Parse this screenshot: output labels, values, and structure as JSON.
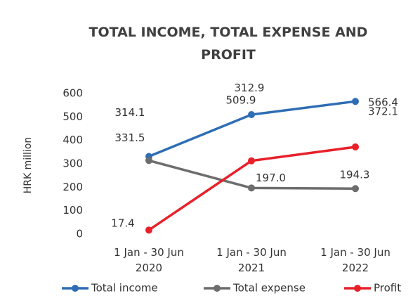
{
  "chart_data": {
    "type": "line",
    "title": "TOTAL INCOME, TOTAL EXPENSE AND PROFIT",
    "ylabel": "HRK million",
    "categories": [
      "1 Jan - 30 Jun 2020",
      "1 Jan - 30 Jun 2021",
      "1 Jan - 30 Jun 2022"
    ],
    "series": [
      {
        "name": "Total income",
        "color": "#2e6db5",
        "values": [
          331.5,
          509.9,
          566.4
        ],
        "value_labels": [
          "331.5",
          "509.9",
          "566.4"
        ]
      },
      {
        "name": "Total expense",
        "color": "#6d6d6d",
        "values": [
          314.1,
          197.0,
          194.3
        ],
        "value_labels": [
          "314.1",
          "197.0",
          "194.3"
        ]
      },
      {
        "name": "Profit",
        "color": "#e8202a",
        "values": [
          17.4,
          312.9,
          372.1
        ],
        "value_labels": [
          "17.4",
          "312.9",
          "372.1"
        ]
      }
    ],
    "ylim": [
      0,
      600
    ],
    "yticks": [
      0,
      100,
      200,
      300,
      400,
      500,
      600
    ],
    "grid": false,
    "legend": "bottom"
  }
}
